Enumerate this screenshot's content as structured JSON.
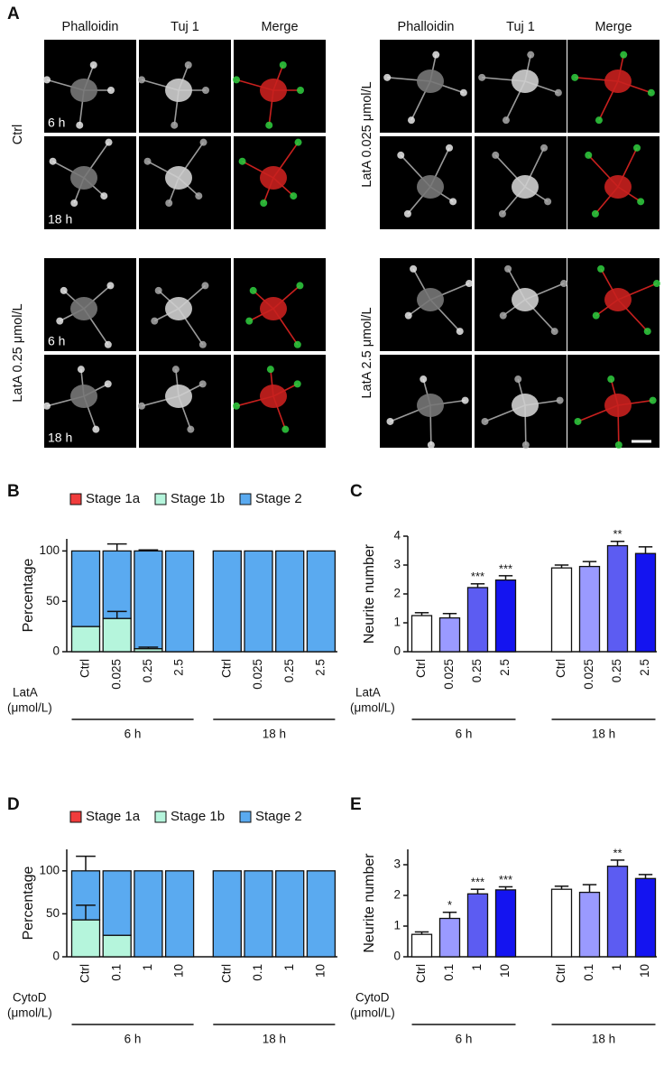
{
  "panel_a": {
    "label": "A",
    "left": {
      "headers": [
        "Phalloidin",
        "Tuj 1",
        "Merge"
      ],
      "blocks": [
        {
          "condition": "Ctrl",
          "times": [
            "6 h",
            "18 h"
          ]
        },
        {
          "condition": "LatA 0.25 μmol/L",
          "times": [
            "6 h",
            "18 h"
          ]
        }
      ]
    },
    "right": {
      "headers": [
        "Phalloidin",
        "Tuj 1",
        "Merge"
      ],
      "blocks": [
        {
          "condition": "LatA 0.025 μmol/L"
        },
        {
          "condition": "LatA 2.5 μmol/L"
        }
      ]
    }
  },
  "chart_data": [
    {
      "panel": "B",
      "type": "bar",
      "stacked": true,
      "ylabel": "Percentage",
      "xlabel": [
        "LatA",
        "(μmol/L)"
      ],
      "categories": [
        "Ctrl",
        "0.025",
        "0.25",
        "2.5",
        "Ctrl",
        "0.025",
        "0.25",
        "2.5"
      ],
      "groups": [
        "6 h",
        "18 h"
      ],
      "ylim": [
        0,
        112
      ],
      "yticks": [
        0,
        50,
        100
      ],
      "legend": "top",
      "series": [
        {
          "name": "Stage 1a",
          "color": "#f03c3c",
          "values": [
            0,
            0,
            0,
            0,
            0,
            0,
            0,
            0
          ]
        },
        {
          "name": "Stage 1b",
          "color": "#b5f5dc",
          "values": [
            25,
            33,
            3,
            0,
            0,
            0,
            0,
            0
          ],
          "errors": [
            null,
            7,
            1.5,
            null,
            null,
            null,
            null,
            null
          ]
        },
        {
          "name": "Stage 2",
          "color": "#5aaaf0",
          "values": [
            75,
            67,
            97,
            100,
            100,
            100,
            100,
            100
          ],
          "errors": [
            null,
            7,
            1,
            null,
            null,
            null,
            null,
            null
          ]
        }
      ]
    },
    {
      "panel": "C",
      "type": "bar",
      "ylabel": "Neurite number",
      "xlabel": [
        "LatA",
        "(μmol/L)"
      ],
      "categories": [
        "Ctrl",
        "0.025",
        "0.25",
        "2.5",
        "Ctrl",
        "0.025",
        "0.25",
        "2.5"
      ],
      "groups": [
        "6 h",
        "18 h"
      ],
      "ylim": [
        0,
        4
      ],
      "yticks": [
        0,
        1,
        2,
        3,
        4
      ],
      "values": [
        1.25,
        1.17,
        2.22,
        2.48,
        2.9,
        2.95,
        3.67,
        3.4
      ],
      "errors": [
        0.1,
        0.15,
        0.13,
        0.15,
        0.1,
        0.17,
        0.15,
        0.23
      ],
      "colors": [
        "#ffffff",
        "#9a9aff",
        "#5c5cf2",
        "#1414f0",
        "#ffffff",
        "#9a9aff",
        "#5c5cf2",
        "#1414f0"
      ],
      "significance": [
        null,
        null,
        "***",
        "***",
        null,
        null,
        "**",
        null
      ]
    },
    {
      "panel": "D",
      "type": "bar",
      "stacked": true,
      "ylabel": "Percentage",
      "xlabel": [
        "CytoD",
        "(μmol/L)"
      ],
      "categories": [
        "Ctrl",
        "0.1",
        "1",
        "10",
        "Ctrl",
        "0.1",
        "1",
        "10"
      ],
      "groups": [
        "6 h",
        "18 h"
      ],
      "ylim": [
        0,
        125
      ],
      "yticks": [
        0,
        50,
        100
      ],
      "legend": "top",
      "series": [
        {
          "name": "Stage 1a",
          "color": "#f03c3c",
          "values": [
            0,
            0,
            0,
            0,
            0,
            0,
            0,
            0
          ]
        },
        {
          "name": "Stage 1b",
          "color": "#b5f5dc",
          "values": [
            43,
            25,
            0,
            0,
            0,
            0,
            0,
            0
          ],
          "errors": [
            17,
            null,
            null,
            null,
            null,
            null,
            null,
            null
          ]
        },
        {
          "name": "Stage 2",
          "color": "#5aaaf0",
          "values": [
            57,
            75,
            100,
            100,
            100,
            100,
            100,
            100
          ],
          "errors": [
            17,
            null,
            null,
            null,
            null,
            null,
            null,
            null
          ]
        }
      ]
    },
    {
      "panel": "E",
      "type": "bar",
      "ylabel": "Neurite number",
      "xlabel": [
        "CytoD",
        "(μmol/L)"
      ],
      "categories": [
        "Ctrl",
        "0.1",
        "1",
        "10",
        "Ctrl",
        "0.1",
        "1",
        "10"
      ],
      "groups": [
        "6 h",
        "18 h"
      ],
      "ylim": [
        0,
        3.5
      ],
      "yticks": [
        0,
        1,
        2,
        3
      ],
      "values": [
        0.73,
        1.25,
        2.05,
        2.18,
        2.2,
        2.1,
        2.95,
        2.55
      ],
      "errors": [
        0.08,
        0.2,
        0.15,
        0.1,
        0.1,
        0.25,
        0.2,
        0.13
      ],
      "colors": [
        "#ffffff",
        "#9a9aff",
        "#5c5cf2",
        "#1414f0",
        "#ffffff",
        "#9a9aff",
        "#5c5cf2",
        "#1414f0"
      ],
      "significance": [
        null,
        "*",
        "***",
        "***",
        null,
        null,
        "**",
        null
      ]
    }
  ]
}
